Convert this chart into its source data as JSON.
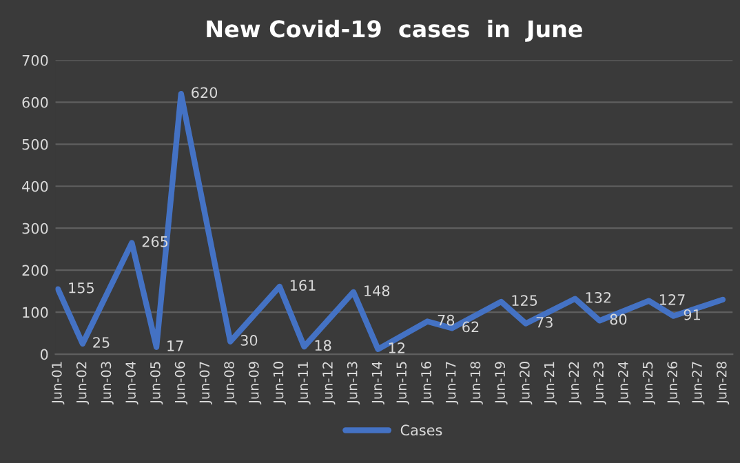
{
  "chart_data": {
    "type": "line",
    "title": "New Covid-19  cases  in  June",
    "categories": [
      "Jun-01",
      "Jun-02",
      "Jun-03",
      "Jun-04",
      "Jun-05",
      "Jun-06",
      "Jun-07",
      "Jun-08",
      "Jun-09",
      "Jun-10",
      "Jun-11",
      "Jun-12",
      "Jun-13",
      "Jun-14",
      "Jun-15",
      "Jun-16",
      "Jun-17",
      "Jun-18",
      "Jun-19",
      "Jun-20",
      "Jun-21",
      "Jun-22",
      "Jun-23",
      "Jun-24",
      "Jun-25",
      "Jun-26",
      "Jun-27",
      "Jun-28"
    ],
    "series": [
      {
        "name": "Cases",
        "color": "#4472c4",
        "values": [
          155,
          25,
          null,
          265,
          17,
          620,
          null,
          30,
          null,
          161,
          18,
          null,
          148,
          12,
          null,
          78,
          62,
          null,
          125,
          73,
          null,
          132,
          80,
          null,
          127,
          91,
          null,
          130
        ],
        "value_labels": [
          "155",
          "25",
          null,
          "265",
          "17",
          "620",
          null,
          "30",
          null,
          "161",
          "18",
          null,
          "148",
          "12",
          null,
          "78",
          "62",
          null,
          "125",
          "73",
          null,
          "132",
          "80",
          null,
          "127",
          "91",
          null,
          null
        ]
      }
    ],
    "ylim": [
      0,
      700
    ],
    "yticks": [
      0,
      100,
      200,
      300,
      400,
      500,
      600,
      700
    ],
    "grid": "y",
    "legend": "bottom",
    "marker": "none",
    "line_style": "solid"
  }
}
